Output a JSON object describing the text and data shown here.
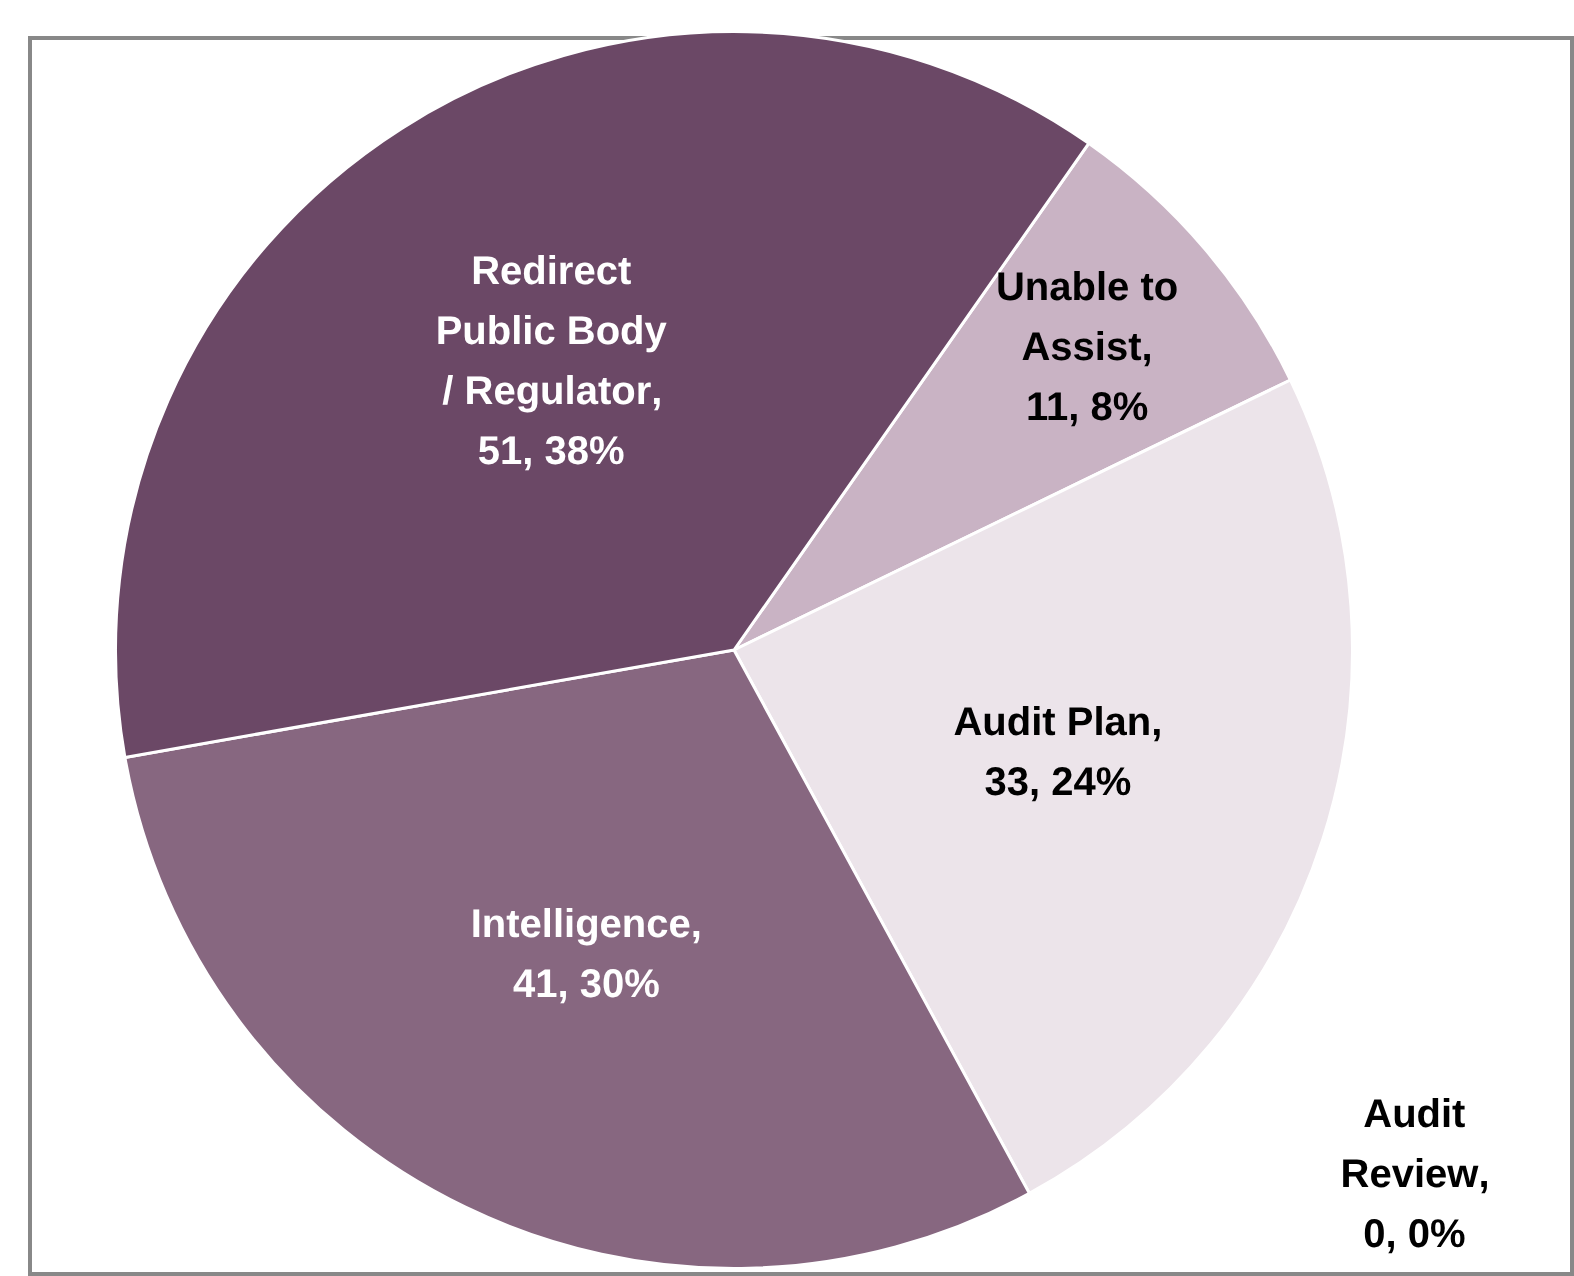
{
  "chart_data": {
    "type": "pie",
    "categories": [
      "Unable to Assist",
      "Audit Plan",
      "Audit Review",
      "Intelligence",
      "Redirect Public Body / Regulator"
    ],
    "values": [
      11,
      33,
      0,
      41,
      51
    ],
    "value_labels": [
      ", 11, 8%",
      ", 33, 24%",
      ", 0, 0%",
      ", 41, 30%",
      ", 51, 38%"
    ],
    "colors": [
      "#c9b3c4",
      "#ece4ea",
      "#dcd0d9",
      "#876780",
      "#6b4866"
    ],
    "legend": false
  }
}
